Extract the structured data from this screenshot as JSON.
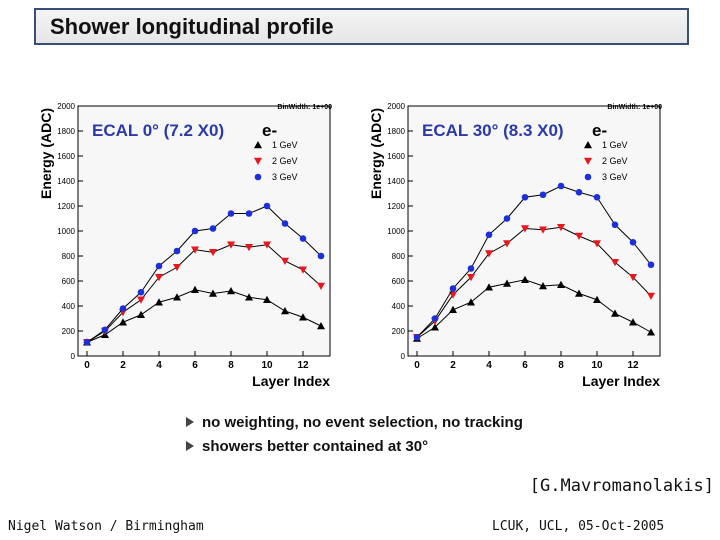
{
  "slide": {
    "title": "Shower longitudinal profile",
    "bullets": [
      "no weighting, no event selection, no tracking",
      "showers better contained at 30°"
    ],
    "credit": "[G.Mavromanolakis]",
    "footer_left": "Nigel Watson / Birmingham",
    "footer_right": "LCUK, UCL, 05-Oct-2005"
  },
  "colors": {
    "s1": "#000000",
    "s2": "#e8161d",
    "s3": "#1d2fd8",
    "label": "#2b3aa8"
  },
  "chart_data": [
    {
      "type": "line",
      "title": "ECAL 0° (7.2 X0)",
      "stat_label": "BinWidth: 1e+00",
      "legend_title": "e-",
      "xlabel": "Layer Index",
      "ylabel": "Energy (ADC)",
      "xlim": [
        -0.5,
        13.5
      ],
      "ylim": [
        0,
        2000
      ],
      "xticks": [
        0,
        2,
        4,
        6,
        8,
        10,
        12
      ],
      "yticks": [
        0,
        200,
        400,
        600,
        800,
        1000,
        1200,
        1400,
        1600,
        1800,
        2000
      ],
      "x": [
        0,
        1,
        2,
        3,
        4,
        5,
        6,
        7,
        8,
        9,
        10,
        11,
        12,
        13
      ],
      "series": [
        {
          "name": "1 GeV",
          "marker": "triangle-up",
          "values": [
            110,
            170,
            270,
            330,
            430,
            470,
            530,
            500,
            520,
            470,
            450,
            360,
            310,
            240
          ]
        },
        {
          "name": "2 GeV",
          "marker": "triangle-down",
          "values": [
            110,
            200,
            350,
            450,
            630,
            710,
            850,
            830,
            890,
            870,
            890,
            760,
            690,
            560
          ]
        },
        {
          "name": "3 GeV",
          "marker": "circle",
          "values": [
            110,
            210,
            380,
            510,
            720,
            840,
            1000,
            1020,
            1140,
            1140,
            1200,
            1060,
            940,
            800
          ]
        }
      ]
    },
    {
      "type": "line",
      "title": "ECAL 30° (8.3 X0)",
      "stat_label": "BinWidth: 1e+00",
      "legend_title": "e-",
      "xlabel": "Layer Index",
      "ylabel": "Energy (ADC)",
      "xlim": [
        -0.5,
        13.5
      ],
      "ylim": [
        0,
        2000
      ],
      "xticks": [
        0,
        2,
        4,
        6,
        8,
        10,
        12
      ],
      "yticks": [
        0,
        200,
        400,
        600,
        800,
        1000,
        1200,
        1400,
        1600,
        1800,
        2000
      ],
      "x": [
        0,
        1,
        2,
        3,
        4,
        5,
        6,
        7,
        8,
        9,
        10,
        11,
        12,
        13
      ],
      "series": [
        {
          "name": "1 GeV",
          "marker": "triangle-up",
          "values": [
            140,
            230,
            370,
            430,
            550,
            580,
            610,
            560,
            570,
            500,
            450,
            340,
            270,
            190
          ]
        },
        {
          "name": "2 GeV",
          "marker": "triangle-down",
          "values": [
            150,
            280,
            490,
            630,
            820,
            900,
            1020,
            1010,
            1030,
            960,
            900,
            750,
            630,
            480
          ]
        },
        {
          "name": "3 GeV",
          "marker": "circle",
          "values": [
            150,
            300,
            540,
            700,
            970,
            1100,
            1270,
            1290,
            1360,
            1310,
            1270,
            1050,
            910,
            730
          ]
        }
      ]
    }
  ]
}
